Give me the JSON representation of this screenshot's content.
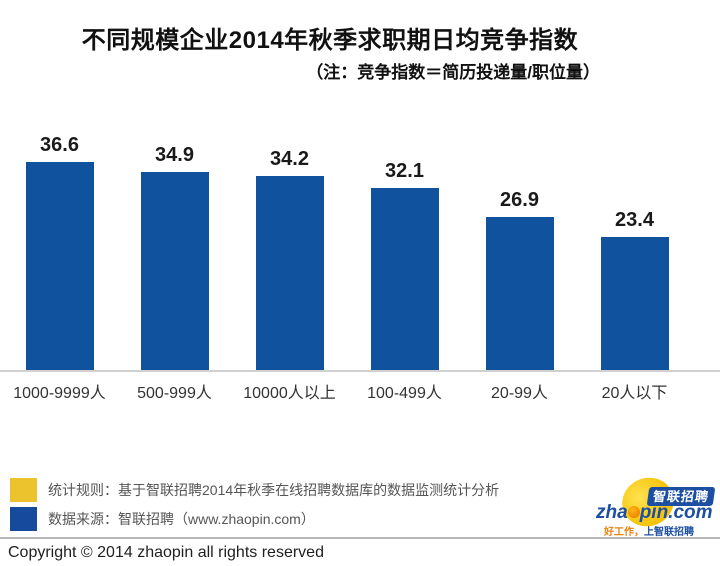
{
  "header": {
    "title": "不同规模企业2014年秋季求职期日均竞争指数",
    "subtitle": "（注：竞争指数＝简历投递量/职位量）"
  },
  "chart_data": {
    "type": "bar",
    "title": "不同规模企业2014年秋季求职期日均竞争指数",
    "note": "竞争指数＝简历投递量/职位量",
    "categories": [
      "1000-9999人",
      "500-999人",
      "10000人以上",
      "100-499人",
      "20-99人",
      "20人以下"
    ],
    "values": [
      36.6,
      34.9,
      34.2,
      32.1,
      26.9,
      23.4
    ],
    "bar_color": "#11529F",
    "xlabel": "",
    "ylabel": "",
    "ylim": [
      0,
      40
    ],
    "grid": false,
    "data_labels": true,
    "legend_position": "none"
  },
  "legend": {
    "items": [
      {
        "swatch_color": "#EDC32D",
        "label": "统计规则：基于智联招聘2014年秋季在线招聘数据库的数据监测统计分析"
      },
      {
        "swatch_color": "#164A9C",
        "label": "数据来源：智联招聘（www.zhaopin.com）"
      }
    ]
  },
  "footer": {
    "copyright": "Copyright © 2014 zhaopin all rights reserved"
  },
  "logo": {
    "brand_cn": "智联招聘",
    "domain_prefix": "zha",
    "domain_suffix": "pin.com",
    "tagline_left": "好工作，",
    "tagline_right": "上智联招聘",
    "brand_blue": "#1C4FA1",
    "brand_yellow": "#F7C50F",
    "brand_orange": "#F08300"
  }
}
